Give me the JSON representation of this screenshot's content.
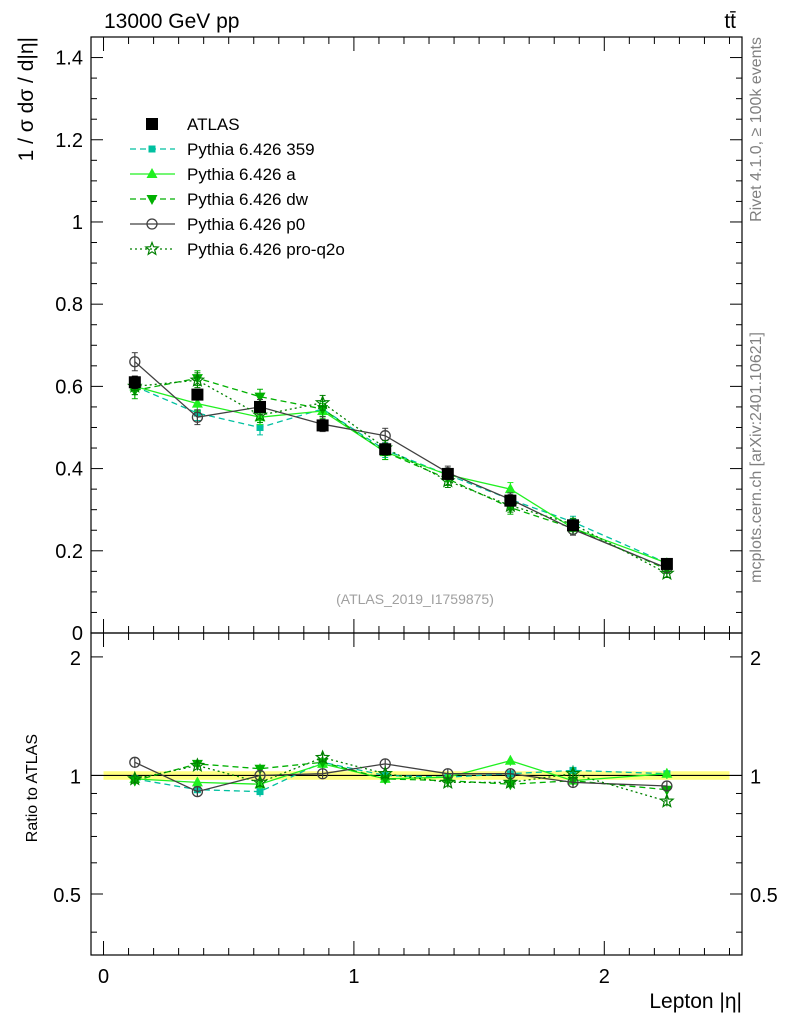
{
  "header": {
    "energy_label": "13000 GeV pp",
    "process_label": "tt̄"
  },
  "side_labels": {
    "rivet": "Rivet 4.1.0, ≥ 100k events",
    "mcplots": "mcplots.cern.ch [arXiv:2401.10621]"
  },
  "analysis_id": "(ATLAS_2019_I1759875)",
  "colors": {
    "atlas": "#000000",
    "py359": "#00c0a0",
    "pya": "#20f020",
    "pydw": "#00b000",
    "pyp0": "#404040",
    "pyq2o": "#008000",
    "band": "#ffff80"
  },
  "chart_data": [
    {
      "type": "line",
      "panel": "main",
      "title": "13000 GeV pp",
      "xlabel": "Lepton |η|",
      "ylabel": "1 / σ  dσ / d|η|",
      "xlim": [
        -0.05,
        2.55
      ],
      "ylim": [
        0,
        1.45
      ],
      "yticks": [
        0,
        0.2,
        0.4,
        0.6,
        0.8,
        1,
        1.2,
        1.4
      ],
      "ytick_labels": [
        "0",
        "0.2",
        "0.4",
        "0.6",
        "0.8",
        "1",
        "1.2",
        "1.4"
      ],
      "x": [
        0.125,
        0.375,
        0.625,
        0.875,
        1.125,
        1.375,
        1.625,
        1.875,
        2.25
      ],
      "x_bin_edges": [
        0,
        0.25,
        0.5,
        0.75,
        1.0,
        1.25,
        1.5,
        1.75,
        2.0,
        2.5
      ],
      "legend_position": "top-left",
      "series": [
        {
          "name": "ATLAS",
          "key": "atlas",
          "marker": "square",
          "line": "none",
          "values": [
            0.61,
            0.58,
            0.55,
            0.505,
            0.447,
            0.387,
            0.322,
            0.262,
            0.168
          ],
          "err": [
            0.015,
            0.012,
            0.012,
            0.012,
            0.01,
            0.01,
            0.01,
            0.008,
            0.006
          ]
        },
        {
          "name": "Pythia 6.426 359",
          "key": "py359",
          "marker": "square-small",
          "line": "dashed",
          "values": [
            0.6,
            0.535,
            0.5,
            0.545,
            0.445,
            0.385,
            0.325,
            0.27,
            0.17
          ],
          "err": [
            0.02,
            0.018,
            0.018,
            0.018,
            0.018,
            0.016,
            0.016,
            0.014,
            0.01
          ]
        },
        {
          "name": "Pythia 6.426 a",
          "key": "pya",
          "marker": "triangle-up",
          "line": "solid",
          "values": [
            0.6,
            0.558,
            0.525,
            0.54,
            0.44,
            0.385,
            0.35,
            0.255,
            0.17
          ],
          "err": [
            0.02,
            0.018,
            0.018,
            0.018,
            0.018,
            0.016,
            0.016,
            0.014,
            0.01
          ]
        },
        {
          "name": "Pythia 6.426 dw",
          "key": "pydw",
          "marker": "triangle-down",
          "line": "dashed",
          "values": [
            0.59,
            0.62,
            0.575,
            0.545,
            0.44,
            0.375,
            0.305,
            0.255,
            0.155
          ],
          "err": [
            0.02,
            0.018,
            0.018,
            0.018,
            0.018,
            0.016,
            0.016,
            0.014,
            0.01
          ]
        },
        {
          "name": "Pythia 6.426 p0",
          "key": "pyp0",
          "marker": "circle-open",
          "line": "solid",
          "values": [
            0.66,
            0.525,
            0.55,
            0.508,
            0.48,
            0.39,
            0.325,
            0.252,
            0.158
          ],
          "err": [
            0.022,
            0.018,
            0.018,
            0.018,
            0.018,
            0.016,
            0.016,
            0.014,
            0.01
          ]
        },
        {
          "name": "Pythia 6.426 pro-q2o",
          "key": "pyq2o",
          "marker": "star-open",
          "line": "dotted",
          "values": [
            0.6,
            0.615,
            0.53,
            0.56,
            0.45,
            0.37,
            0.31,
            0.265,
            0.145
          ],
          "err": [
            0.02,
            0.018,
            0.018,
            0.018,
            0.018,
            0.016,
            0.016,
            0.014,
            0.01
          ]
        }
      ]
    },
    {
      "type": "line",
      "panel": "ratio",
      "xlabel": "Lepton |η|",
      "ylabel": "Ratio to ATLAS",
      "xlim": [
        -0.05,
        2.55
      ],
      "ylim": [
        0.35,
        2.3
      ],
      "yscale": "log",
      "yticks": [
        0.5,
        1,
        2
      ],
      "ytick_labels": [
        "0.5",
        "1",
        "2"
      ],
      "xticks": [
        0,
        1,
        2
      ],
      "xtick_labels": [
        "0",
        "1",
        "2"
      ],
      "x": [
        0.125,
        0.375,
        0.625,
        0.875,
        1.125,
        1.375,
        1.625,
        1.875,
        2.25
      ],
      "reference_band": [
        0.975,
        1.025
      ],
      "series": [
        {
          "name": "Pythia 6.426 359",
          "key": "py359",
          "marker": "square-small",
          "line": "dashed",
          "values": [
            0.98,
            0.92,
            0.91,
            1.08,
            1.0,
            0.99,
            1.01,
            1.03,
            1.01
          ]
        },
        {
          "name": "Pythia 6.426 a",
          "key": "pya",
          "marker": "triangle-up",
          "line": "solid",
          "values": [
            0.98,
            0.96,
            0.95,
            1.07,
            0.98,
            0.99,
            1.09,
            0.97,
            1.01
          ]
        },
        {
          "name": "Pythia 6.426 dw",
          "key": "pydw",
          "marker": "triangle-down",
          "line": "dashed",
          "values": [
            0.97,
            1.07,
            1.04,
            1.08,
            0.98,
            0.97,
            0.95,
            0.97,
            0.92
          ]
        },
        {
          "name": "Pythia 6.426 p0",
          "key": "pyp0",
          "marker": "circle-open",
          "line": "solid",
          "values": [
            1.08,
            0.91,
            1.0,
            1.01,
            1.07,
            1.01,
            1.01,
            0.96,
            0.94
          ]
        },
        {
          "name": "Pythia 6.426 pro-q2o",
          "key": "pyq2o",
          "marker": "star-open",
          "line": "dotted",
          "values": [
            0.98,
            1.06,
            0.96,
            1.11,
            1.01,
            0.96,
            0.96,
            1.01,
            0.86
          ]
        }
      ]
    }
  ]
}
